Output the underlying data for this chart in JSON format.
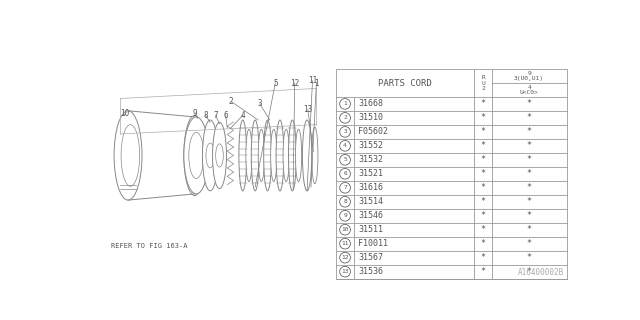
{
  "bg_color": "#ffffff",
  "parts": [
    [
      "1",
      "31668",
      "*",
      "*"
    ],
    [
      "2",
      "31510",
      "*",
      "*"
    ],
    [
      "3",
      "F05602",
      "*",
      "*"
    ],
    [
      "4",
      "31552",
      "*",
      "*"
    ],
    [
      "5",
      "31532",
      "*",
      "*"
    ],
    [
      "6",
      "31521",
      "*",
      "*"
    ],
    [
      "7",
      "31616",
      "*",
      "*"
    ],
    [
      "8",
      "31514",
      "*",
      "*"
    ],
    [
      "9",
      "31546",
      "*",
      "*"
    ],
    [
      "10",
      "31511",
      "*",
      "*"
    ],
    [
      "11",
      "F10011",
      "*",
      "*"
    ],
    [
      "12",
      "31567",
      "*",
      "*"
    ],
    [
      "13",
      "31536",
      "*",
      "*"
    ]
  ],
  "parts_cord_label": "PARTS CORD",
  "col2_label": "R\nU\n2",
  "col3_top": "9\n3\n(U0,U1)",
  "col3_bot": "4\nU<C0>",
  "diagram_note": "REFER TO FIG 163-A",
  "footer_code": "A16400002B",
  "line_color": "#999999",
  "text_color": "#555555",
  "draw_color": "#888888"
}
